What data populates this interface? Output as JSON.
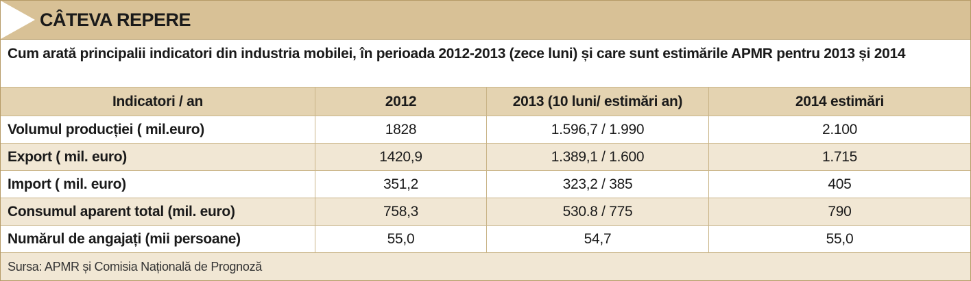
{
  "banner": {
    "title": "CÂTEVA REPERE",
    "color": "#d8c196"
  },
  "subtitle": "Cum arată principalii indicatori din industria mobilei, în perioada 2012-2013 (zece luni) și care sunt estimările APMR pentru 2013 și 2014",
  "table": {
    "headers": [
      "Indicatori / an",
      "2012",
      "2013 (10 luni/ estimări an)",
      "2014 estimări"
    ],
    "rows": [
      [
        "Volumul producției ( mil.euro)",
        "1828",
        "1.596,7 / 1.990",
        "2.100"
      ],
      [
        "Export ( mil. euro)",
        "1420,9",
        "1.389,1 / 1.600",
        "1.715"
      ],
      [
        "Import ( mil. euro)",
        "351,2",
        "323,2 / 385",
        "405"
      ],
      [
        "Consumul aparent total (mil. euro)",
        "758,3",
        "530.8 / 775",
        "790"
      ],
      [
        "Numărul de angajați (mii persoane)",
        "55,0",
        "54,7",
        "55,0"
      ]
    ]
  },
  "source": "Sursa: APMR și Comisia Națională de Prognoză",
  "colors": {
    "header_bg": "#e4d3b1",
    "shaded_row_bg": "#f1e7d4",
    "border": "#c9b487"
  }
}
